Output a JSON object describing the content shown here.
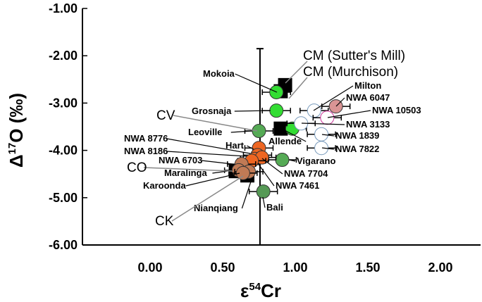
{
  "chart_data": {
    "type": "scatter",
    "xlabel": "ε54Cr",
    "xlabel_base": "ε",
    "xlabel_sup": "54",
    "xlabel_rest": "Cr",
    "ylabel_base": "Δ",
    "ylabel_sup": "17",
    "ylabel_rest": "O (‰)",
    "xlim": [
      -0.5,
      2.28
    ],
    "ylim": [
      -6,
      -1
    ],
    "xticks": [
      "0.00",
      "0.50",
      "1.00",
      "1.50",
      "2.00"
    ],
    "xtick_values": [
      0,
      0.5,
      1,
      1.5,
      2
    ],
    "yticks": [
      "-1.00",
      "-2.00",
      "-3.00",
      "-4.00",
      "-5.00",
      "-6.00"
    ],
    "ytick_values": [
      -1,
      -2,
      -3,
      -4,
      -5,
      -6
    ],
    "grid": false,
    "group_squares": [
      {
        "name": "CM (Sutter's Mill)",
        "x": 0.93,
        "y": -2.62
      },
      {
        "name": "CM (Murchison)",
        "x": 0.9,
        "y": -2.75
      },
      {
        "name": "CV",
        "x": 0.9,
        "y": -3.54
      },
      {
        "name": "CO",
        "x": 0.59,
        "y": -4.44
      },
      {
        "name": "CK",
        "x": 0.67,
        "y": -4.53
      }
    ],
    "points": [
      {
        "name": "Mokoia",
        "x": 0.87,
        "y": -2.77,
        "color": "#33dd33"
      },
      {
        "name": "Grosnaja",
        "x": 0.87,
        "y": -3.16,
        "color": "#33dd33"
      },
      {
        "name": "Leoville",
        "x": 0.75,
        "y": -3.59,
        "color": "#55aa55"
      },
      {
        "name": "Allende",
        "x": 0.98,
        "y": -3.54,
        "color": "#33dd33"
      },
      {
        "name": "NWA 3133",
        "x": 1.04,
        "y": -3.43,
        "color": "#ffffff"
      },
      {
        "name": "Milton",
        "x": 1.13,
        "y": -3.16,
        "color": "#ffffff"
      },
      {
        "name": "NWA 6047",
        "x": 1.28,
        "y": -3.07,
        "color": "#d99494"
      },
      {
        "name": "NWA 10503",
        "x": 1.22,
        "y": -3.31,
        "color": "#ffffff"
      },
      {
        "name": "NWA 1839",
        "x": 1.18,
        "y": -3.66,
        "color": "#ffffff"
      },
      {
        "name": "NWA 7822",
        "x": 1.18,
        "y": -3.95,
        "color": "#ffffff"
      },
      {
        "name": "Vigarano",
        "x": 0.91,
        "y": -4.2,
        "color": "#55aa55"
      },
      {
        "name": "Hart",
        "x": 0.75,
        "y": -3.95,
        "color": "#ee6622"
      },
      {
        "name": "NWA 8776",
        "x": 0.74,
        "y": -4.1,
        "color": "#ee6622"
      },
      {
        "name": "NWA 8186",
        "x": 0.72,
        "y": -4.18,
        "color": "#ee6622"
      },
      {
        "name": "NWA 7704",
        "x": 0.77,
        "y": -4.15,
        "color": "#ee6622"
      },
      {
        "name": "NWA 7461",
        "x": 0.7,
        "y": -4.22,
        "color": "#ee6622"
      },
      {
        "name": "NWA 6703",
        "x": 0.63,
        "y": -4.29,
        "color": "#c07a55"
      },
      {
        "name": "Maralinga",
        "x": 0.61,
        "y": -4.42,
        "color": "#c07a55"
      },
      {
        "name": "Karoonda",
        "x": 0.68,
        "y": -4.45,
        "color": "#c07a55"
      },
      {
        "name": "Nianqiang",
        "x": 0.64,
        "y": -4.48,
        "color": "#c07a55"
      },
      {
        "name": "Bali",
        "x": 0.78,
        "y": -4.87,
        "color": "#559955"
      }
    ],
    "vertical_error_bar": {
      "x": 0.757,
      "y_top": -1.85,
      "y_bottom": -6
    }
  }
}
